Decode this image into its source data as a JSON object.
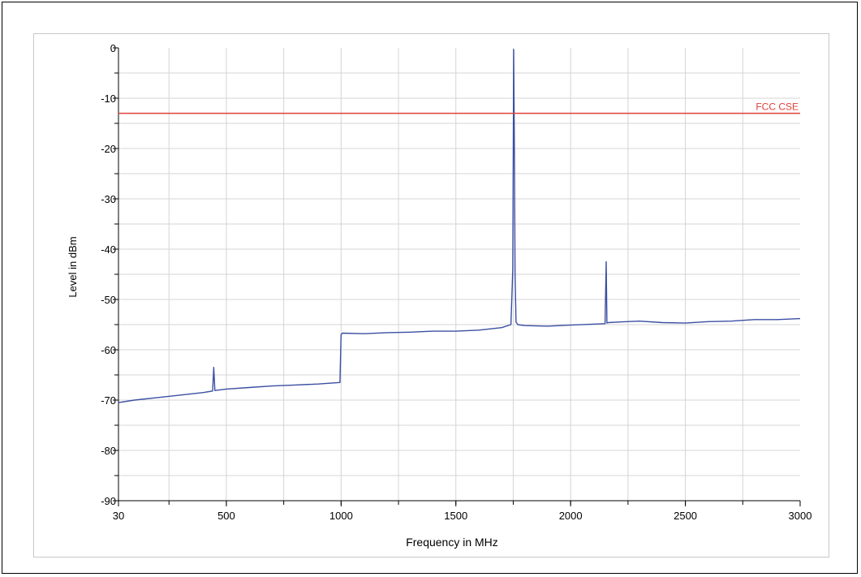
{
  "chart_data": {
    "type": "line",
    "xlabel": "Frequency in MHz",
    "ylabel": "Level in dBm",
    "xlim": [
      30,
      3000
    ],
    "ylim": [
      -90,
      0
    ],
    "x_ticks": [
      30,
      500,
      1000,
      1500,
      2000,
      2500,
      3000
    ],
    "y_ticks": [
      0,
      -10,
      -20,
      -30,
      -40,
      -50,
      -60,
      -70,
      -80,
      -90
    ],
    "grid": true,
    "series": [
      {
        "color": "#3a4fa3",
        "x": [
          30,
          100,
          200,
          300,
          400,
          440,
          445,
          450,
          500,
          600,
          700,
          800,
          900,
          995,
          1000,
          1005,
          1100,
          1200,
          1300,
          1400,
          1500,
          1600,
          1700,
          1740,
          1748,
          1752,
          1755,
          1758,
          1762,
          1770,
          1800,
          1900,
          2000,
          2100,
          2150,
          2155,
          2158,
          2165,
          2200,
          2300,
          2400,
          2500,
          2600,
          2700,
          2800,
          2900,
          3000
        ],
        "y": [
          -70.5,
          -70,
          -69.5,
          -69,
          -68.5,
          -68.2,
          -63.5,
          -68.1,
          -67.8,
          -67.5,
          -67.2,
          -67,
          -66.8,
          -66.5,
          -57,
          -56.7,
          -56.8,
          -56.6,
          -56.5,
          -56.3,
          -56.3,
          -56.1,
          -55.6,
          -55,
          -44,
          -0.3,
          -20.5,
          -45,
          -54.5,
          -55,
          -55.2,
          -55.3,
          -55.1,
          -54.9,
          -54.8,
          -42.5,
          -54.7,
          -54.6,
          -54.5,
          -54.3,
          -54.6,
          -54.7,
          -54.4,
          -54.3,
          -54,
          -54,
          -53.8
        ]
      }
    ],
    "reference_lines": [
      {
        "label": "FCC CSE",
        "y": -13,
        "color": "#e0403a"
      }
    ]
  }
}
